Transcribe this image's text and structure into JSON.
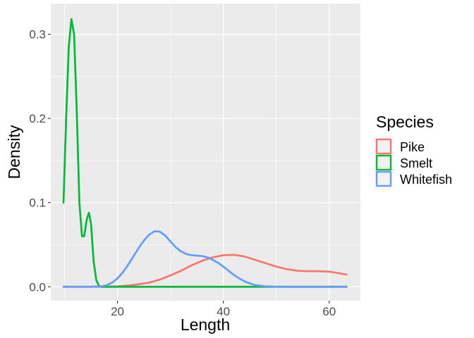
{
  "chart_data": {
    "type": "line",
    "subtype": "density",
    "xlabel": "Length",
    "ylabel": "Density",
    "xlim": [
      7.4,
      65.9
    ],
    "ylim": [
      -0.0165,
      0.3365
    ],
    "x_ticks": [
      20,
      40,
      60
    ],
    "y_ticks": [
      0.0,
      0.1,
      0.2,
      0.3
    ],
    "x_tick_labels": [
      "20",
      "40",
      "60"
    ],
    "y_tick_labels": [
      "0.0",
      "0.1",
      "0.2",
      "0.3"
    ],
    "grid": true,
    "legend": {
      "title": "Species",
      "position": "right"
    },
    "series": [
      {
        "name": "Pike",
        "color": "#F8766D",
        "points": [
          [
            9.8,
            0
          ],
          [
            15,
            0
          ],
          [
            18,
            0
          ],
          [
            20,
            0.0005
          ],
          [
            22,
            0.0015
          ],
          [
            24,
            0.003
          ],
          [
            26,
            0.005
          ],
          [
            28,
            0.0085
          ],
          [
            30,
            0.0135
          ],
          [
            32,
            0.019
          ],
          [
            34,
            0.0255
          ],
          [
            36,
            0.031
          ],
          [
            38,
            0.035
          ],
          [
            40,
            0.0375
          ],
          [
            42,
            0.038
          ],
          [
            44,
            0.036
          ],
          [
            46,
            0.032
          ],
          [
            48,
            0.028
          ],
          [
            50,
            0.024
          ],
          [
            52,
            0.021
          ],
          [
            54,
            0.019
          ],
          [
            56,
            0.0185
          ],
          [
            58,
            0.0185
          ],
          [
            60,
            0.018
          ],
          [
            62,
            0.016
          ],
          [
            63.3,
            0.0145
          ]
        ]
      },
      {
        "name": "Smelt",
        "color": "#00BA38",
        "points": [
          [
            9.8,
            0.1
          ],
          [
            10.3,
            0.2
          ],
          [
            10.8,
            0.285
          ],
          [
            11.3,
            0.318
          ],
          [
            11.8,
            0.3
          ],
          [
            12.3,
            0.21
          ],
          [
            12.8,
            0.1
          ],
          [
            13.3,
            0.06
          ],
          [
            13.7,
            0.06
          ],
          [
            14.2,
            0.08
          ],
          [
            14.6,
            0.088
          ],
          [
            15.0,
            0.075
          ],
          [
            15.5,
            0.03
          ],
          [
            16.0,
            0.008
          ],
          [
            16.5,
            0.001
          ],
          [
            17,
            0
          ],
          [
            20,
            0
          ],
          [
            30,
            0
          ],
          [
            40,
            0
          ],
          [
            50,
            0
          ],
          [
            63.3,
            0
          ]
        ]
      },
      {
        "name": "Whitefish",
        "color": "#619CFF",
        "points": [
          [
            9.8,
            0
          ],
          [
            15,
            0
          ],
          [
            17,
            0.0005
          ],
          [
            18,
            0.002
          ],
          [
            19,
            0.005
          ],
          [
            20,
            0.01
          ],
          [
            21,
            0.017
          ],
          [
            22,
            0.026
          ],
          [
            23,
            0.036
          ],
          [
            24,
            0.046
          ],
          [
            25,
            0.055
          ],
          [
            26,
            0.062
          ],
          [
            27,
            0.066
          ],
          [
            28,
            0.0655
          ],
          [
            29,
            0.061
          ],
          [
            30,
            0.054
          ],
          [
            31,
            0.047
          ],
          [
            32,
            0.042
          ],
          [
            33,
            0.039
          ],
          [
            34,
            0.0375
          ],
          [
            35,
            0.037
          ],
          [
            36,
            0.0365
          ],
          [
            37,
            0.035
          ],
          [
            38,
            0.032
          ],
          [
            39,
            0.0285
          ],
          [
            40,
            0.024
          ],
          [
            41,
            0.019
          ],
          [
            42,
            0.014
          ],
          [
            43,
            0.01
          ],
          [
            44,
            0.0065
          ],
          [
            45,
            0.004
          ],
          [
            46,
            0.002
          ],
          [
            48,
            0.0005
          ],
          [
            50,
            0
          ],
          [
            63.3,
            0
          ]
        ]
      }
    ]
  }
}
